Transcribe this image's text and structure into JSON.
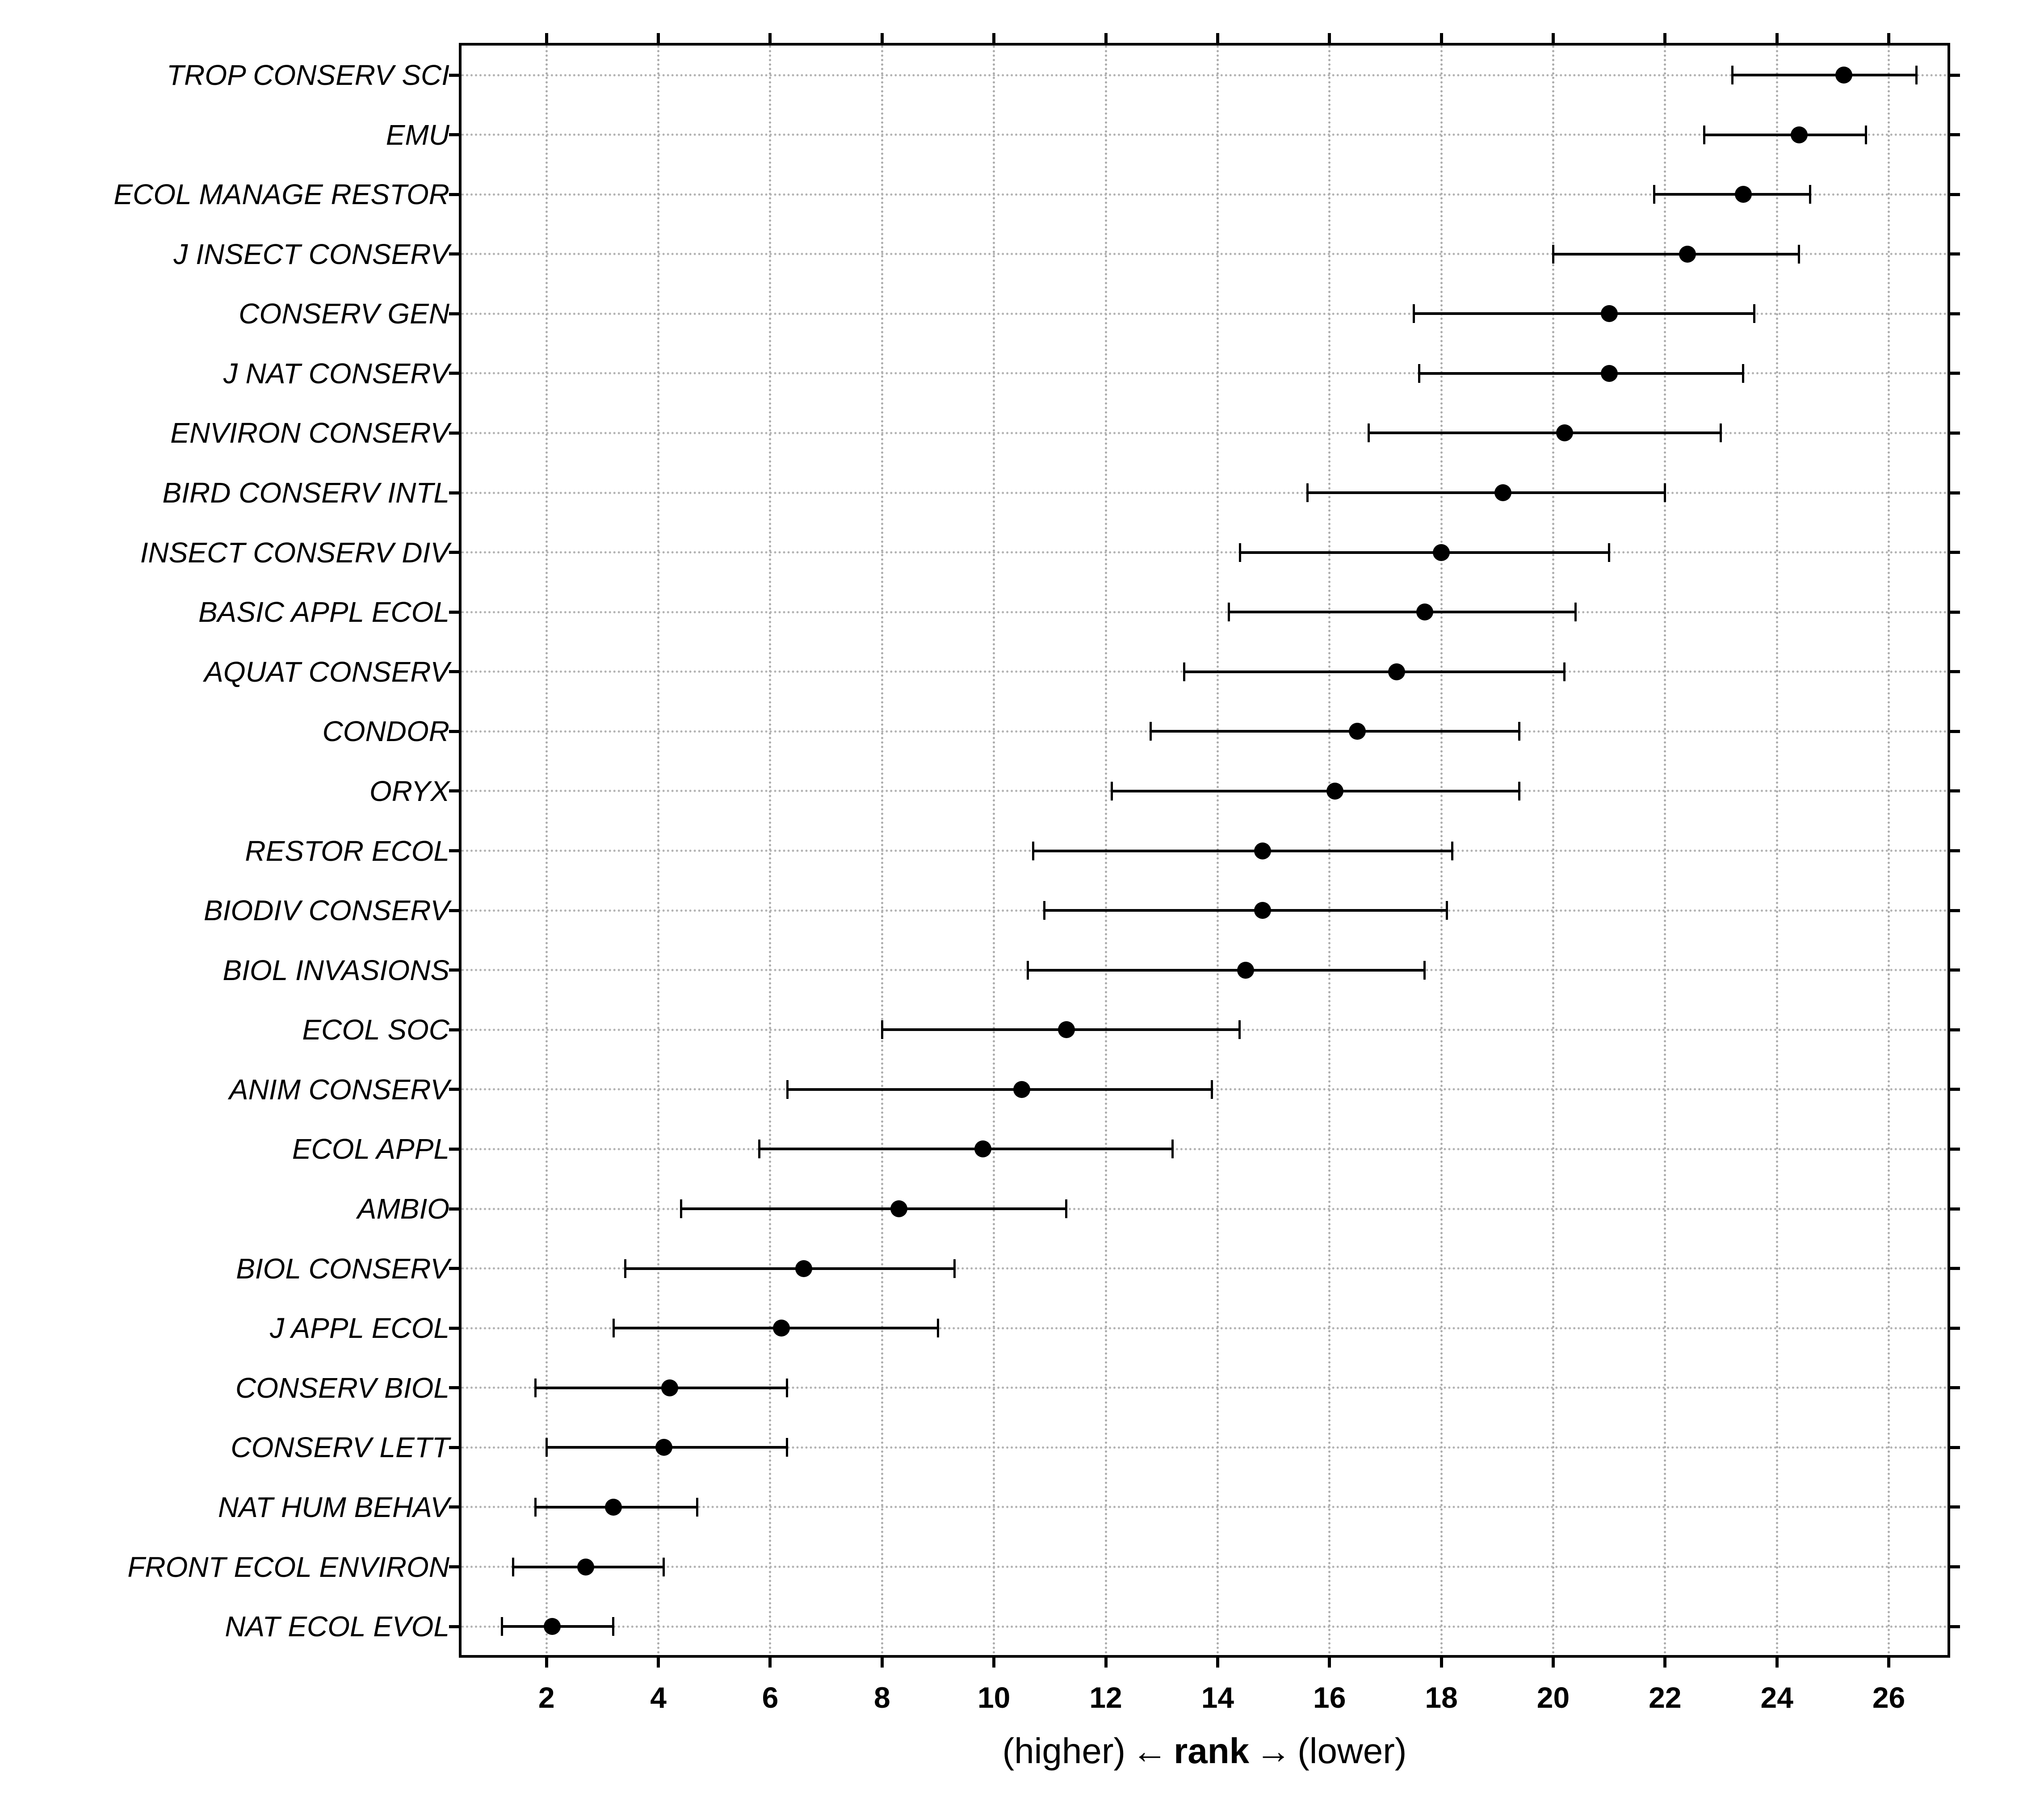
{
  "chart_data": {
    "type": "scatter",
    "subtype": "dot-plot-with-error-bars",
    "orientation": "horizontal",
    "title": "",
    "xlabel_parts": {
      "left": "(higher)",
      "arrow_left": "←",
      "rank": "rank",
      "arrow_right": "→",
      "right": "(lower)"
    },
    "x_ticks": [
      2,
      4,
      6,
      8,
      10,
      12,
      14,
      16,
      18,
      20,
      22,
      24,
      26
    ],
    "xlim": [
      0.48,
      27.05
    ],
    "grid": "dotted gray gridlines on both axes",
    "legend_position": "none",
    "point_color": "#000000",
    "grid_color": "#ababab",
    "journals": [
      {
        "name": "TROP CONSERV SCI",
        "rank": 25.2,
        "ci_low": 23.2,
        "ci_high": 26.5
      },
      {
        "name": "EMU",
        "rank": 24.4,
        "ci_low": 22.7,
        "ci_high": 25.6
      },
      {
        "name": "ECOL MANAGE RESTOR",
        "rank": 23.4,
        "ci_low": 21.8,
        "ci_high": 24.6
      },
      {
        "name": "J INSECT CONSERV",
        "rank": 22.4,
        "ci_low": 20.0,
        "ci_high": 24.4
      },
      {
        "name": "CONSERV GEN",
        "rank": 21.0,
        "ci_low": 17.5,
        "ci_high": 23.6
      },
      {
        "name": "J NAT CONSERV",
        "rank": 21.0,
        "ci_low": 17.6,
        "ci_high": 23.4
      },
      {
        "name": "ENVIRON CONSERV",
        "rank": 20.2,
        "ci_low": 16.7,
        "ci_high": 23.0
      },
      {
        "name": "BIRD CONSERV INTL",
        "rank": 19.1,
        "ci_low": 15.6,
        "ci_high": 22.0
      },
      {
        "name": "INSECT CONSERV DIV",
        "rank": 18.0,
        "ci_low": 14.4,
        "ci_high": 21.0
      },
      {
        "name": "BASIC APPL ECOL",
        "rank": 17.7,
        "ci_low": 14.2,
        "ci_high": 20.4
      },
      {
        "name": "AQUAT CONSERV",
        "rank": 17.2,
        "ci_low": 13.4,
        "ci_high": 20.2
      },
      {
        "name": "CONDOR",
        "rank": 16.5,
        "ci_low": 12.8,
        "ci_high": 19.4
      },
      {
        "name": "ORYX",
        "rank": 16.1,
        "ci_low": 12.1,
        "ci_high": 19.4
      },
      {
        "name": "RESTOR ECOL",
        "rank": 14.8,
        "ci_low": 10.7,
        "ci_high": 18.2
      },
      {
        "name": "BIODIV CONSERV",
        "rank": 14.8,
        "ci_low": 10.9,
        "ci_high": 18.1
      },
      {
        "name": "BIOL INVASIONS",
        "rank": 14.5,
        "ci_low": 10.6,
        "ci_high": 17.7
      },
      {
        "name": "ECOL SOC",
        "rank": 11.3,
        "ci_low": 8.0,
        "ci_high": 14.4
      },
      {
        "name": "ANIM CONSERV",
        "rank": 10.5,
        "ci_low": 6.3,
        "ci_high": 13.9
      },
      {
        "name": "ECOL APPL",
        "rank": 9.8,
        "ci_low": 5.8,
        "ci_high": 13.2
      },
      {
        "name": "AMBIO",
        "rank": 8.3,
        "ci_low": 4.4,
        "ci_high": 11.3
      },
      {
        "name": "BIOL CONSERV",
        "rank": 6.6,
        "ci_low": 3.4,
        "ci_high": 9.3
      },
      {
        "name": "J APPL ECOL",
        "rank": 6.2,
        "ci_low": 3.2,
        "ci_high": 9.0
      },
      {
        "name": "CONSERV BIOL",
        "rank": 4.2,
        "ci_low": 1.8,
        "ci_high": 6.3
      },
      {
        "name": "CONSERV LETT",
        "rank": 4.1,
        "ci_low": 2.0,
        "ci_high": 6.3
      },
      {
        "name": "NAT HUM BEHAV",
        "rank": 3.2,
        "ci_low": 1.8,
        "ci_high": 4.7
      },
      {
        "name": "FRONT ECOL ENVIRON",
        "rank": 2.7,
        "ci_low": 1.4,
        "ci_high": 4.1
      },
      {
        "name": "NAT ECOL EVOL",
        "rank": 2.1,
        "ci_low": 1.2,
        "ci_high": 3.2
      }
    ]
  }
}
